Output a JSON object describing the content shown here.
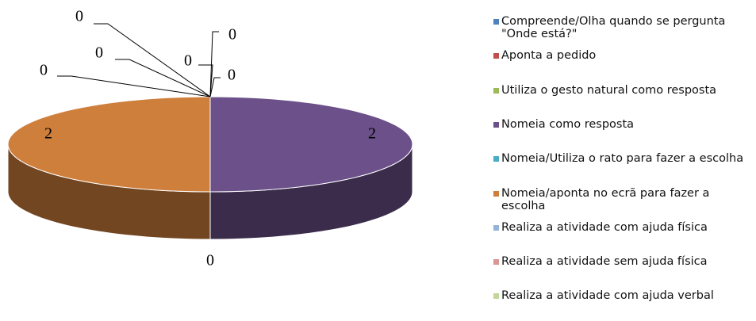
{
  "chart_data": {
    "type": "pie",
    "categories": [
      "Compreende/Olha quando se pergunta \"Onde está?\"",
      "Aponta a pedido",
      "Utiliza o gesto natural como resposta",
      "Nomeia como resposta",
      "Nomeia/Utiliza o rato para fazer a escolha",
      "Nomeia/aponta no ecrã para fazer a escolha",
      "Realiza a atividade com ajuda física",
      "Realiza a atividade sem ajuda física",
      "Realiza a atividade com ajuda verbal"
    ],
    "values": [
      0,
      0,
      0,
      2,
      0,
      2,
      0,
      0,
      0
    ],
    "colors": [
      "#4f81bd",
      "#c0504d",
      "#9bbb59",
      "#6b5089",
      "#4bacc6",
      "#cf7f3c",
      "#95b3d7",
      "#d99694",
      "#c3d69b"
    ],
    "legend": "right"
  }
}
